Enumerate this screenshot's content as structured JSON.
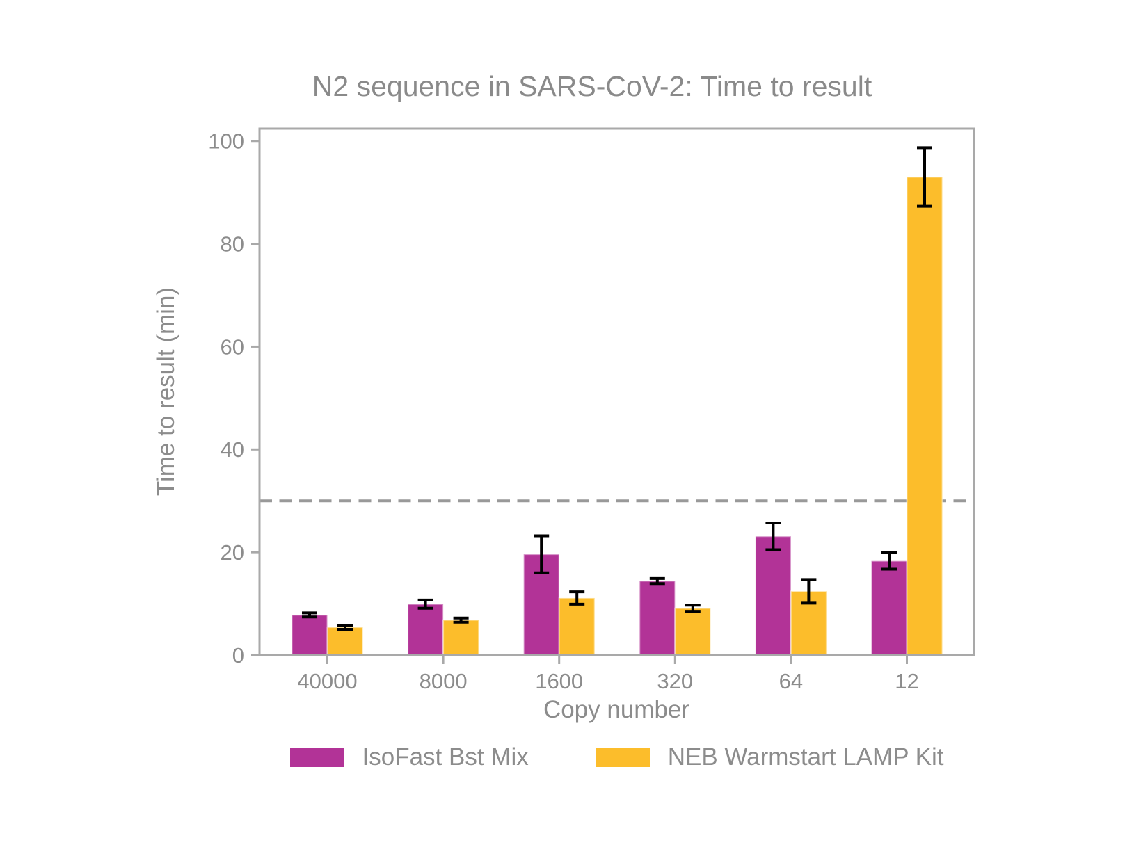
{
  "chart_data": {
    "type": "bar",
    "title": "N2 sequence in SARS-CoV-2: Time to result",
    "xlabel": "Copy number",
    "ylabel": "Time to result (min)",
    "categories": [
      "40000",
      "8000",
      "1600",
      "320",
      "64",
      "12"
    ],
    "series": [
      {
        "name": "IsoFast Bst Mix",
        "color": "#b23397",
        "values": [
          7.8,
          9.9,
          19.6,
          14.4,
          23.1,
          18.3
        ],
        "errors": [
          0.4,
          0.8,
          3.6,
          0.5,
          2.6,
          1.6
        ]
      },
      {
        "name": "NEB Warmstart LAMP Kit",
        "color": "#fcbd2b",
        "values": [
          5.4,
          6.8,
          11.1,
          9.1,
          12.4,
          93.0
        ],
        "errors": [
          0.4,
          0.4,
          1.2,
          0.6,
          2.3,
          5.7
        ]
      }
    ],
    "yticks": [
      0,
      20,
      40,
      60,
      80,
      100
    ],
    "ylim": [
      0,
      102.4
    ],
    "reference_line": {
      "value": 30,
      "style": "dashed",
      "color": "#999999"
    },
    "legend_position": "bottom",
    "grid": false,
    "colors": {
      "text": "#8c8c8c",
      "spine": "#a9a9a9",
      "errorbar": "#000000"
    }
  }
}
